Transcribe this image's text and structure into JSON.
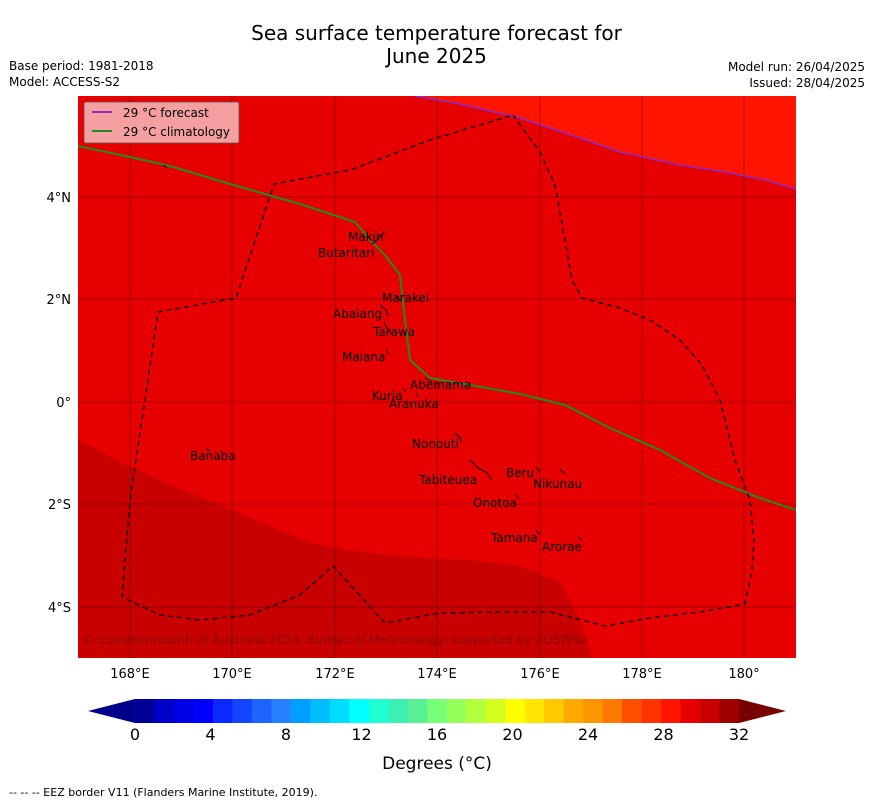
{
  "title_line1": "Sea surface temperature forecast for",
  "title_line2": "June 2025",
  "base_period": "Base period: 1981-2018",
  "model": "Model: ACCESS-S2",
  "model_run": "Model run: 26/04/2025",
  "issued": "Issued: 28/04/2025",
  "legend": {
    "forecast": "29 °C  forecast",
    "climatology": "29 °C  climatology"
  },
  "lon_ticks": [
    "168°E",
    "170°E",
    "172°E",
    "174°E",
    "176°E",
    "178°E",
    "180°"
  ],
  "lat_ticks": [
    "4°N",
    "2°N",
    "0°",
    "2°S",
    "4°S"
  ],
  "islands": {
    "makin": "Makin",
    "butaritari": "Butaritari",
    "marakei": "Marakei",
    "abaiang": "Abaiang",
    "tarawa": "Tarawa",
    "maiana": "Maiana",
    "abemama": "Abemama",
    "kuria": "Kuria",
    "aranuka": "Aranuka",
    "banaba": "Banaba",
    "nonouti": "Nonouti",
    "beru": "Beru",
    "tabiteuea": "Tabiteuea",
    "nikunau": "Nikunau",
    "onotoa": "Onotoa",
    "tamana": "Tamana",
    "arorae": "Arorae"
  },
  "copyright": "© Commonwealth of Australia 2023, Bureau of Meteorology; supported by COSPPac",
  "colorbar": {
    "ticks": [
      "0",
      "4",
      "8",
      "12",
      "16",
      "20",
      "24",
      "28",
      "32"
    ],
    "label": "Degrees (°C)",
    "colors": [
      "#000096",
      "#0000c8",
      "#0000e6",
      "#0000ff",
      "#0a28ff",
      "#1446ff",
      "#1e64ff",
      "#2882ff",
      "#00a0ff",
      "#00beff",
      "#00dcff",
      "#00ffff",
      "#1effd2",
      "#3cf0b4",
      "#5af096",
      "#78ff78",
      "#96ff5a",
      "#b4ff3c",
      "#d2ff1e",
      "#ffff00",
      "#ffe600",
      "#ffc800",
      "#ffaa00",
      "#ff9600",
      "#ff7800",
      "#ff5000",
      "#ff3200",
      "#ff1400",
      "#e60000",
      "#c80000",
      "#a00000"
    ],
    "under_color": "#00008c",
    "over_color": "#780000"
  },
  "map_colors": {
    "warm": "#e60000",
    "warmer": "#c80000",
    "cooler": "#ff1400"
  },
  "footer": "--  --  -- EEZ border V11 (Flanders Marine Institute, 2019)."
}
